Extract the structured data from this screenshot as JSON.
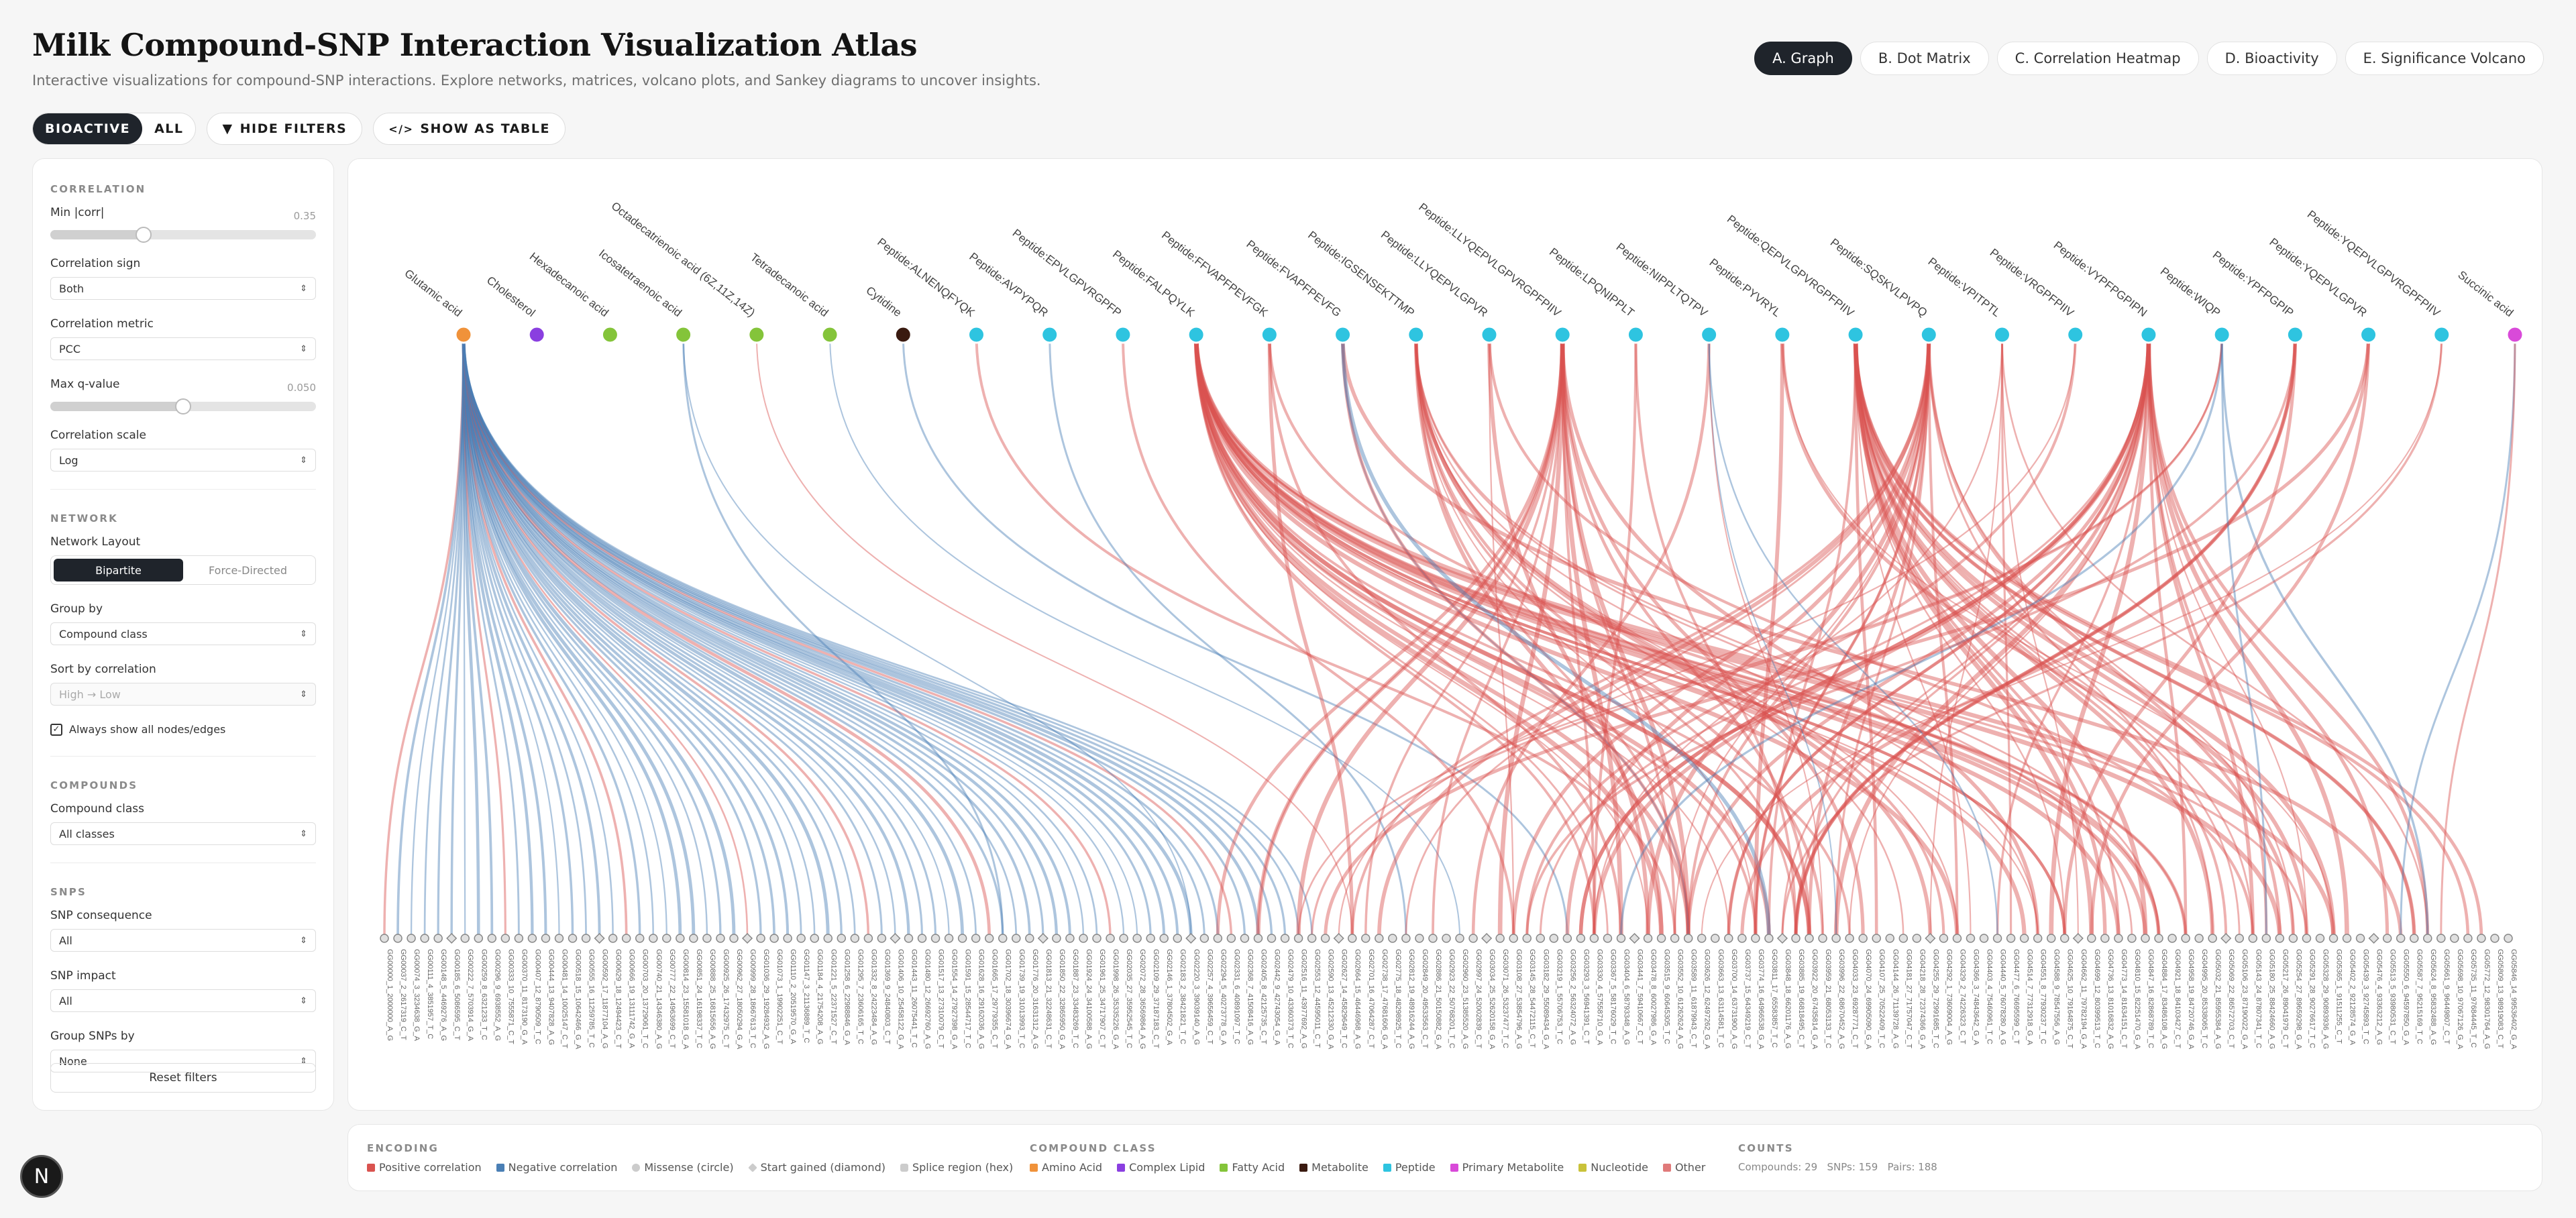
{
  "header": {
    "title": "Milk Compound-SNP Interaction Visualization Atlas",
    "subtitle": "Interactive visualizations for compound-SNP interactions. Explore networks, matrices, volcano plots, and Sankey diagrams to uncover insights."
  },
  "tabs": [
    "A. Graph",
    "B. Dot Matrix",
    "C. Correlation Heatmap",
    "D. Bioactivity",
    "E. Significance Volcano"
  ],
  "controls": {
    "bioactive": "BIOACTIVE",
    "all": "ALL",
    "hide_filters": "HIDE FILTERS",
    "show_table": "SHOW AS TABLE"
  },
  "sidebar": {
    "correlation": {
      "heading": "CORRELATION",
      "min_corr_label": "Min |corr|",
      "min_corr_value": "0.35",
      "min_corr_fraction": 0.35,
      "sign_label": "Correlation sign",
      "sign_value": "Both",
      "metric_label": "Correlation metric",
      "metric_value": "PCC",
      "max_q_label": "Max q-value",
      "max_q_value": "0.050",
      "max_q_fraction": 0.5,
      "scale_label": "Correlation scale",
      "scale_value": "Log"
    },
    "network": {
      "heading": "NETWORK",
      "layout_label": "Network Layout",
      "layout_options": [
        "Bipartite",
        "Force-Directed"
      ],
      "group_label": "Group by",
      "group_value": "Compound class",
      "sort_label": "Sort by correlation",
      "sort_value": "High → Low",
      "always_show": "Always show all nodes/edges"
    },
    "compounds": {
      "heading": "COMPOUNDS",
      "class_label": "Compound class",
      "class_value": "All classes"
    },
    "snps": {
      "heading": "SNPS",
      "consequence_label": "SNP consequence",
      "consequence_value": "All",
      "impact_label": "SNP impact",
      "impact_value": "All",
      "group_label": "Group SNPs by",
      "group_value": "None"
    },
    "reset": "Reset filters"
  },
  "legend": {
    "encoding_heading": "ENCODING",
    "encoding": [
      "Positive correlation",
      "Negative correlation",
      "Missense (circle)",
      "Start gained (diamond)",
      "Splice region (hex)"
    ],
    "class_heading": "COMPOUND CLASS",
    "classes": [
      {
        "name": "Amino Acid",
        "color": "#f0923a"
      },
      {
        "name": "Complex Lipid",
        "color": "#8a3fe0"
      },
      {
        "name": "Fatty Acid",
        "color": "#84c43a"
      },
      {
        "name": "Metabolite",
        "color": "#3a1a10"
      },
      {
        "name": "Peptide",
        "color": "#2ec4e0"
      },
      {
        "name": "Primary Metabolite",
        "color": "#d94ad9"
      },
      {
        "name": "Nucleotide",
        "color": "#c9c23a"
      },
      {
        "name": "Other",
        "color": "#e07a7a"
      }
    ],
    "counts_heading": "COUNTS",
    "counts": "Compounds: 29   SNPs: 159   Pairs: 188"
  },
  "colors": {
    "positive": "#d9534f",
    "negative": "#4a7fb5"
  },
  "chart_data": {
    "type": "network",
    "layout": "bipartite",
    "compounds": [
      {
        "name": "Glutamic acid",
        "class": "Amino Acid"
      },
      {
        "name": "Cholesterol",
        "class": "Complex Lipid"
      },
      {
        "name": "Hexadecanoic acid",
        "class": "Fatty Acid"
      },
      {
        "name": "Icosatetraenoic acid",
        "class": "Fatty Acid"
      },
      {
        "name": "Octadecatrienoic acid (6Z,11Z,14Z)",
        "class": "Fatty Acid"
      },
      {
        "name": "Tetradecanoic acid",
        "class": "Fatty Acid"
      },
      {
        "name": "Cytidine",
        "class": "Metabolite"
      },
      {
        "name": "Peptide:ALNENQFYQK",
        "class": "Peptide"
      },
      {
        "name": "Peptide:AVPYPQR",
        "class": "Peptide"
      },
      {
        "name": "Peptide:EPVLGPVRGPFP",
        "class": "Peptide"
      },
      {
        "name": "Peptide:FALPQYLK",
        "class": "Peptide"
      },
      {
        "name": "Peptide:FFVAPFPEVFGK",
        "class": "Peptide"
      },
      {
        "name": "Peptide:FVAPFPEVFG",
        "class": "Peptide"
      },
      {
        "name": "Peptide:IGSENSEKTTMP",
        "class": "Peptide"
      },
      {
        "name": "Peptide:LLYQEPVLGPVR",
        "class": "Peptide"
      },
      {
        "name": "Peptide:LLYQEPVLGPVRGPFPIIV",
        "class": "Peptide"
      },
      {
        "name": "Peptide:LPQNIPPLT",
        "class": "Peptide"
      },
      {
        "name": "Peptide:NIPPLTQTPV",
        "class": "Peptide"
      },
      {
        "name": "Peptide:PYVRYL",
        "class": "Peptide"
      },
      {
        "name": "Peptide:QEPVLGPVRGPFPIIV",
        "class": "Peptide"
      },
      {
        "name": "Peptide:SQSKVLPVPQ",
        "class": "Peptide"
      },
      {
        "name": "Peptide:VPITPTL",
        "class": "Peptide"
      },
      {
        "name": "Peptide:VRGPFPIIV",
        "class": "Peptide"
      },
      {
        "name": "Peptide:VYPFPGPIPN",
        "class": "Peptide"
      },
      {
        "name": "Peptide:WIQP",
        "class": "Peptide"
      },
      {
        "name": "Peptide:YPFPGPIP",
        "class": "Peptide"
      },
      {
        "name": "Peptide:YQEPVLGPVR",
        "class": "Peptide"
      },
      {
        "name": "Peptide:YQEPVLGPVRGPFPIIV",
        "class": "Peptide"
      },
      {
        "name": "Succinic acid",
        "class": "Primary Metabolite"
      }
    ],
    "snp_count": 159,
    "snp_prefix": "GG",
    "pair_count": 188
  }
}
